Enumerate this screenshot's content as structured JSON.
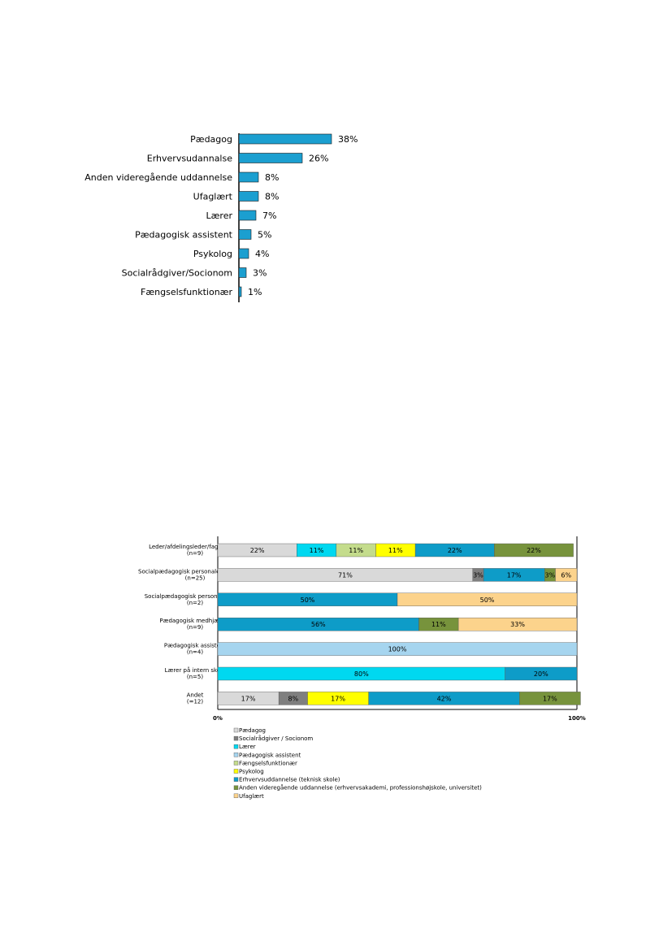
{
  "chart_data": [
    {
      "type": "bar",
      "orientation": "horizontal",
      "categories": [
        "Pædagog",
        "Erhvervsudannalse",
        "Anden videregående uddannelse",
        "Ufaglært",
        "Lærer",
        "Pædagogisk assistent",
        "Psykolog",
        "Socialrådgiver/Socionom",
        "Fængselsfunktionær"
      ],
      "values": [
        38,
        26,
        8,
        8,
        7,
        5,
        4,
        3,
        1
      ],
      "data_labels": [
        "38%",
        "26%",
        "8%",
        "8%",
        "7%",
        "5%",
        "4%",
        "3%",
        "1%"
      ],
      "unit": "%",
      "color": "#1b9fd0",
      "xlim": [
        0,
        100
      ]
    },
    {
      "type": "bar",
      "orientation": "horizontal",
      "stacked": true,
      "normalized": true,
      "categories": [
        [
          "Leder/afdelingsleder/faglig leder",
          "(n=9)"
        ],
        [
          "Socialpædagogisk personale - fastansat",
          "(n=25)"
        ],
        [
          "Socialpædagogisk personale - vikar",
          "(n=2)"
        ],
        [
          "Pædagogisk medhjælper",
          "(n=9)"
        ],
        [
          "Pædagogisk assistent",
          "(n=4)"
        ],
        [
          "Lærer på intern skole",
          "(n=5)"
        ],
        [
          "Andet",
          "(=12)"
        ]
      ],
      "series": [
        {
          "name": "Pædagog",
          "color": "#d9d9d9",
          "values": [
            22,
            71,
            0,
            0,
            0,
            0,
            17
          ],
          "labels": [
            "22%",
            "71%",
            "",
            "",
            "",
            "",
            "17%"
          ]
        },
        {
          "name": "Socialrådgiver / Socionom",
          "color": "#7f7f7f",
          "values": [
            0,
            3,
            0,
            0,
            0,
            0,
            8
          ],
          "labels": [
            "",
            "3%",
            "",
            "",
            "",
            "",
            "8%"
          ]
        },
        {
          "name": "Lærer",
          "color": "#00d8f0",
          "values": [
            11,
            0,
            0,
            0,
            0,
            80,
            0
          ],
          "labels": [
            "11%",
            "",
            "",
            "",
            "",
            "80%",
            ""
          ]
        },
        {
          "name": "Pædagogisk assistent",
          "color": "#a6d5ef",
          "values": [
            0,
            0,
            0,
            0,
            100,
            0,
            0
          ],
          "labels": [
            "",
            "",
            "",
            "",
            "100%",
            "",
            ""
          ]
        },
        {
          "name": "Fængselsfunktionær",
          "color": "#c4dc8c",
          "values": [
            11,
            0,
            0,
            0,
            0,
            0,
            0
          ],
          "labels": [
            "11%",
            "",
            "",
            "",
            "",
            "",
            ""
          ]
        },
        {
          "name": "Psykolog",
          "color": "#ffff00",
          "values": [
            11,
            0,
            0,
            0,
            0,
            0,
            17
          ],
          "labels": [
            "11%",
            "",
            "",
            "",
            "",
            "",
            "17%"
          ]
        },
        {
          "name": "Erhvervsuddannelse (teknisk skole)",
          "color": "#0e9cc8",
          "values": [
            22,
            17,
            50,
            56,
            0,
            20,
            42
          ],
          "labels": [
            "22%",
            "17%",
            "50%",
            "56%",
            "",
            "20%",
            "42%"
          ]
        },
        {
          "name": "Anden videregående uddannelse (erhvervsakademi, professionshøjskole, universitet)",
          "color": "#77933c",
          "values": [
            22,
            3,
            0,
            11,
            0,
            0,
            17
          ],
          "labels": [
            "22%",
            "3%",
            "",
            "11%",
            "",
            "",
            "17%"
          ]
        },
        {
          "name": "Ufaglært",
          "color": "#fcd38c",
          "values": [
            0,
            6,
            50,
            33,
            0,
            0,
            0
          ],
          "labels": [
            "",
            "6%",
            "50%",
            "33%",
            "",
            "",
            ""
          ]
        }
      ],
      "xlim": [
        0,
        100
      ],
      "x_tick_labels": [
        "0%",
        "100%"
      ],
      "legend_position": "bottom"
    }
  ]
}
